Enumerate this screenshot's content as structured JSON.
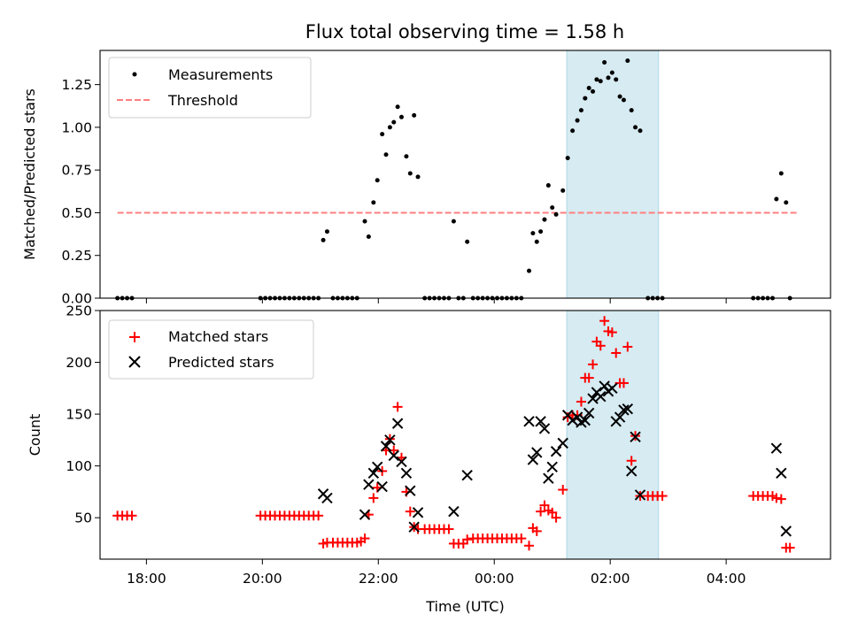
{
  "chart_data": [
    {
      "type": "scatter",
      "title": "Flux total observing time = 1.58 h",
      "xlabel": "",
      "ylabel": "Matched/Predicted stars",
      "xlim": [
        "17:12",
        "05:48"
      ],
      "ylim": [
        0,
        1.45
      ],
      "yticks": [
        "0.00",
        "0.25",
        "0.50",
        "0.75",
        "1.00",
        "1.25"
      ],
      "grid": false,
      "legend_position": "top-left",
      "highlight_span": {
        "from": "01:15",
        "to": "02:50",
        "color": "#add8e6"
      },
      "series": [
        {
          "name": "Measurements",
          "marker": "dot",
          "color": "#000000",
          "points": [
            [
              "17:30",
              0
            ],
            [
              "17:35",
              0
            ],
            [
              "17:40",
              0
            ],
            [
              "17:45",
              0
            ],
            [
              "19:58",
              0
            ],
            [
              "20:03",
              0
            ],
            [
              "20:08",
              0
            ],
            [
              "20:13",
              0
            ],
            [
              "20:18",
              0
            ],
            [
              "20:23",
              0
            ],
            [
              "20:28",
              0
            ],
            [
              "20:33",
              0
            ],
            [
              "20:38",
              0
            ],
            [
              "20:43",
              0
            ],
            [
              "20:48",
              0
            ],
            [
              "20:53",
              0
            ],
            [
              "20:58",
              0
            ],
            [
              "21:03",
              0.34
            ],
            [
              "21:07",
              0.39
            ],
            [
              "21:13",
              0
            ],
            [
              "21:18",
              0
            ],
            [
              "21:23",
              0
            ],
            [
              "21:28",
              0
            ],
            [
              "21:33",
              0
            ],
            [
              "21:38",
              0
            ],
            [
              "21:46",
              0.45
            ],
            [
              "21:50",
              0.36
            ],
            [
              "21:55",
              0.56
            ],
            [
              "21:59",
              0.69
            ],
            [
              "22:04",
              0.96
            ],
            [
              "22:08",
              0.84
            ],
            [
              "22:12",
              1.0
            ],
            [
              "22:16",
              1.03
            ],
            [
              "22:20",
              1.12
            ],
            [
              "22:24",
              1.06
            ],
            [
              "22:29",
              0.83
            ],
            [
              "22:33",
              0.73
            ],
            [
              "22:37",
              1.07
            ],
            [
              "22:41",
              0.71
            ],
            [
              "22:48",
              0
            ],
            [
              "22:53",
              0
            ],
            [
              "22:58",
              0
            ],
            [
              "23:03",
              0
            ],
            [
              "23:08",
              0
            ],
            [
              "23:13",
              0
            ],
            [
              "23:18",
              0.45
            ],
            [
              "23:23",
              0
            ],
            [
              "23:28",
              0
            ],
            [
              "23:32",
              0.33
            ],
            [
              "23:38",
              0
            ],
            [
              "23:43",
              0
            ],
            [
              "23:48",
              0
            ],
            [
              "23:53",
              0
            ],
            [
              "23:58",
              0
            ],
            [
              "00:03",
              0
            ],
            [
              "00:08",
              0
            ],
            [
              "00:13",
              0
            ],
            [
              "00:18",
              0
            ],
            [
              "00:23",
              0
            ],
            [
              "00:28",
              0
            ],
            [
              "00:36",
              0.16
            ],
            [
              "00:40",
              0.38
            ],
            [
              "00:44",
              0.33
            ],
            [
              "00:48",
              0.39
            ],
            [
              "00:52",
              0.46
            ],
            [
              "00:56",
              0.66
            ],
            [
              "01:00",
              0.53
            ],
            [
              "01:04",
              0.49
            ],
            [
              "01:11",
              0.63
            ],
            [
              "01:16",
              0.82
            ],
            [
              "01:21",
              0.98
            ],
            [
              "01:26",
              1.04
            ],
            [
              "01:30",
              1.1
            ],
            [
              "01:34",
              1.17
            ],
            [
              "01:38",
              1.23
            ],
            [
              "01:42",
              1.21
            ],
            [
              "01:46",
              1.28
            ],
            [
              "01:50",
              1.27
            ],
            [
              "01:54",
              1.38
            ],
            [
              "01:58",
              1.29
            ],
            [
              "02:02",
              1.32
            ],
            [
              "02:06",
              1.28
            ],
            [
              "02:10",
              1.18
            ],
            [
              "02:14",
              1.16
            ],
            [
              "02:18",
              1.39
            ],
            [
              "02:22",
              1.1
            ],
            [
              "02:26",
              1.0
            ],
            [
              "02:31",
              0.98
            ],
            [
              "02:39",
              0
            ],
            [
              "02:44",
              0
            ],
            [
              "02:49",
              0
            ],
            [
              "02:54",
              0
            ],
            [
              "04:28",
              0
            ],
            [
              "04:33",
              0
            ],
            [
              "04:38",
              0
            ],
            [
              "04:43",
              0
            ],
            [
              "04:48",
              0
            ],
            [
              "04:52",
              0.58
            ],
            [
              "04:57",
              0.73
            ],
            [
              "05:02",
              0.56
            ],
            [
              "05:06",
              0
            ]
          ]
        },
        {
          "name": "Threshold",
          "marker": "dashed-line",
          "color": "#ff7f7f",
          "points": [
            [
              "17:30",
              0.5
            ],
            [
              "05:15",
              0.5
            ]
          ]
        }
      ]
    },
    {
      "type": "scatter",
      "title": "",
      "xlabel": "Time (UTC)",
      "ylabel": "Count",
      "xticks": [
        "18:00",
        "20:00",
        "22:00",
        "00:00",
        "02:00",
        "04:00"
      ],
      "xlim": [
        "17:12",
        "05:48"
      ],
      "ylim": [
        10,
        250
      ],
      "yticks": [
        "50",
        "100",
        "150",
        "200",
        "250"
      ],
      "grid": false,
      "legend_position": "top-left",
      "highlight_span": {
        "from": "01:15",
        "to": "02:50",
        "color": "#add8e6"
      },
      "series": [
        {
          "name": "Matched stars",
          "marker": "plus",
          "color": "#ff0000",
          "points": [
            [
              "17:30",
              52
            ],
            [
              "17:35",
              52
            ],
            [
              "17:40",
              52
            ],
            [
              "17:45",
              52
            ],
            [
              "19:58",
              52
            ],
            [
              "20:03",
              52
            ],
            [
              "20:08",
              52
            ],
            [
              "20:13",
              52
            ],
            [
              "20:18",
              52
            ],
            [
              "20:23",
              52
            ],
            [
              "20:28",
              52
            ],
            [
              "20:33",
              52
            ],
            [
              "20:38",
              52
            ],
            [
              "20:43",
              52
            ],
            [
              "20:48",
              52
            ],
            [
              "20:53",
              52
            ],
            [
              "20:58",
              52
            ],
            [
              "21:03",
              25
            ],
            [
              "21:07",
              26
            ],
            [
              "21:13",
              26
            ],
            [
              "21:18",
              26
            ],
            [
              "21:23",
              26
            ],
            [
              "21:28",
              26
            ],
            [
              "21:33",
              26
            ],
            [
              "21:38",
              26
            ],
            [
              "21:42",
              27
            ],
            [
              "21:46",
              30
            ],
            [
              "21:50",
              53
            ],
            [
              "21:55",
              69
            ],
            [
              "21:59",
              79
            ],
            [
              "22:04",
              95
            ],
            [
              "22:08",
              115
            ],
            [
              "22:12",
              126
            ],
            [
              "22:16",
              115
            ],
            [
              "22:20",
              157
            ],
            [
              "22:24",
              108
            ],
            [
              "22:29",
              75
            ],
            [
              "22:33",
              56
            ],
            [
              "22:37",
              41
            ],
            [
              "22:41",
              39
            ],
            [
              "22:48",
              39
            ],
            [
              "22:53",
              39
            ],
            [
              "22:58",
              39
            ],
            [
              "23:03",
              39
            ],
            [
              "23:08",
              39
            ],
            [
              "23:13",
              39
            ],
            [
              "23:18",
              25
            ],
            [
              "23:23",
              25
            ],
            [
              "23:28",
              25
            ],
            [
              "23:32",
              29
            ],
            [
              "23:38",
              30
            ],
            [
              "23:43",
              30
            ],
            [
              "23:48",
              30
            ],
            [
              "23:53",
              30
            ],
            [
              "23:58",
              30
            ],
            [
              "00:03",
              30
            ],
            [
              "00:08",
              30
            ],
            [
              "00:13",
              30
            ],
            [
              "00:18",
              30
            ],
            [
              "00:23",
              30
            ],
            [
              "00:28",
              30
            ],
            [
              "00:36",
              23
            ],
            [
              "00:40",
              40
            ],
            [
              "00:44",
              37
            ],
            [
              "00:48",
              56
            ],
            [
              "00:52",
              62
            ],
            [
              "00:56",
              57
            ],
            [
              "01:00",
              55
            ],
            [
              "01:04",
              50
            ],
            [
              "01:11",
              77
            ],
            [
              "01:16",
              147
            ],
            [
              "01:21",
              149
            ],
            [
              "01:26",
              149
            ],
            [
              "01:30",
              162
            ],
            [
              "01:34",
              185
            ],
            [
              "01:38",
              185
            ],
            [
              "01:42",
              198
            ],
            [
              "01:46",
              220
            ],
            [
              "01:50",
              216
            ],
            [
              "01:54",
              240
            ],
            [
              "01:58",
              230
            ],
            [
              "02:02",
              229
            ],
            [
              "02:06",
              209
            ],
            [
              "02:10",
              180
            ],
            [
              "02:14",
              180
            ],
            [
              "02:18",
              215
            ],
            [
              "02:22",
              105
            ],
            [
              "02:26",
              129
            ],
            [
              "02:31",
              71
            ],
            [
              "02:39",
              71
            ],
            [
              "02:44",
              71
            ],
            [
              "02:49",
              71
            ],
            [
              "02:54",
              71
            ],
            [
              "04:28",
              71
            ],
            [
              "04:33",
              71
            ],
            [
              "04:38",
              71
            ],
            [
              "04:43",
              71
            ],
            [
              "04:48",
              71
            ],
            [
              "04:52",
              69
            ],
            [
              "04:57",
              68
            ],
            [
              "05:02",
              21
            ],
            [
              "05:06",
              21
            ]
          ]
        },
        {
          "name": "Predicted stars",
          "marker": "x",
          "color": "#000000",
          "points": [
            [
              "21:03",
              73
            ],
            [
              "21:07",
              69
            ],
            [
              "21:46",
              53
            ],
            [
              "21:50",
              82
            ],
            [
              "21:55",
              93
            ],
            [
              "21:59",
              99
            ],
            [
              "22:04",
              80
            ],
            [
              "22:08",
              119
            ],
            [
              "22:12",
              125
            ],
            [
              "22:16",
              110
            ],
            [
              "22:20",
              141
            ],
            [
              "22:24",
              104
            ],
            [
              "22:29",
              93
            ],
            [
              "22:33",
              76
            ],
            [
              "22:37",
              41
            ],
            [
              "22:41",
              55
            ],
            [
              "23:18",
              56
            ],
            [
              "23:32",
              91
            ],
            [
              "00:36",
              143
            ],
            [
              "00:40",
              106
            ],
            [
              "00:44",
              113
            ],
            [
              "00:48",
              143
            ],
            [
              "00:52",
              136
            ],
            [
              "00:56",
              88
            ],
            [
              "01:00",
              99
            ],
            [
              "01:04",
              114
            ],
            [
              "01:11",
              122
            ],
            [
              "01:16",
              149
            ],
            [
              "01:21",
              144
            ],
            [
              "01:26",
              147
            ],
            [
              "01:30",
              142
            ],
            [
              "01:34",
              144
            ],
            [
              "01:38",
              151
            ],
            [
              "01:42",
              165
            ],
            [
              "01:46",
              171
            ],
            [
              "01:50",
              167
            ],
            [
              "01:54",
              177
            ],
            [
              "01:58",
              172
            ],
            [
              "02:02",
              175
            ],
            [
              "02:06",
              143
            ],
            [
              "02:10",
              147
            ],
            [
              "02:14",
              154
            ],
            [
              "02:18",
              155
            ],
            [
              "02:22",
              95
            ],
            [
              "02:26",
              128
            ],
            [
              "02:31",
              72
            ],
            [
              "04:52",
              117
            ],
            [
              "04:57",
              93
            ],
            [
              "05:02",
              37
            ]
          ]
        }
      ]
    }
  ]
}
